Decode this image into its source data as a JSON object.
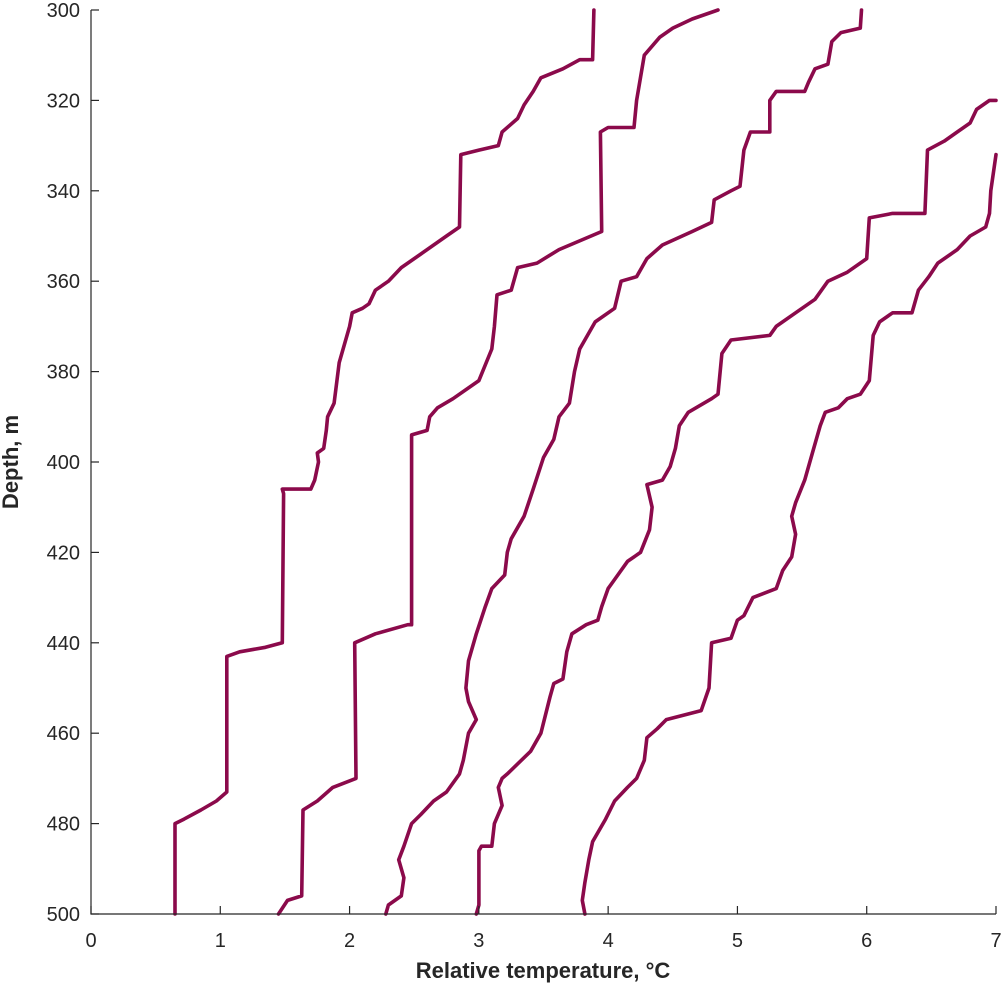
{
  "chart_data": {
    "type": "line",
    "title": "",
    "xlabel": "Relative temperature, °C",
    "ylabel": "Depth, m",
    "xlim": [
      0,
      7
    ],
    "ylim": [
      300,
      500
    ],
    "y_reversed": true,
    "grid": false,
    "legend": "none",
    "x_ticks": [
      "0",
      "1",
      "2",
      "3",
      "4",
      "5",
      "6",
      "7"
    ],
    "y_ticks": [
      "300",
      "320",
      "340",
      "360",
      "380",
      "400",
      "420",
      "440",
      "460",
      "480",
      "500"
    ],
    "line_color": "#8b0a4b",
    "series": [
      {
        "points": [
          [
            0.65,
            500
          ],
          [
            0.65,
            480
          ],
          [
            0.72,
            479
          ],
          [
            0.85,
            477
          ],
          [
            0.97,
            475
          ],
          [
            1.05,
            473
          ],
          [
            1.05,
            443
          ],
          [
            1.15,
            442
          ],
          [
            1.35,
            441
          ],
          [
            1.48,
            440
          ],
          [
            1.49,
            407
          ],
          [
            1.48,
            406
          ],
          [
            1.7,
            406
          ],
          [
            1.73,
            404
          ],
          [
            1.76,
            400
          ],
          [
            1.75,
            398
          ],
          [
            1.8,
            397
          ],
          [
            1.82,
            393
          ],
          [
            1.83,
            390
          ],
          [
            1.88,
            387
          ],
          [
            1.92,
            378
          ],
          [
            2.0,
            370
          ],
          [
            2.02,
            367
          ],
          [
            2.1,
            366
          ],
          [
            2.15,
            365
          ],
          [
            2.2,
            362
          ],
          [
            2.3,
            360
          ],
          [
            2.4,
            357
          ],
          [
            2.55,
            354
          ],
          [
            2.75,
            350
          ],
          [
            2.85,
            348
          ],
          [
            2.86,
            332
          ],
          [
            3.0,
            331
          ],
          [
            3.15,
            330
          ],
          [
            3.18,
            327
          ],
          [
            3.3,
            324
          ],
          [
            3.35,
            321
          ],
          [
            3.42,
            318
          ],
          [
            3.48,
            315
          ],
          [
            3.65,
            313
          ],
          [
            3.78,
            311
          ],
          [
            3.88,
            311
          ],
          [
            3.89,
            300
          ]
        ]
      },
      {
        "points": [
          [
            1.45,
            500
          ],
          [
            1.52,
            497
          ],
          [
            1.63,
            496
          ],
          [
            1.64,
            477
          ],
          [
            1.75,
            475
          ],
          [
            1.87,
            472
          ],
          [
            2.05,
            470
          ],
          [
            2.04,
            440
          ],
          [
            2.2,
            438
          ],
          [
            2.45,
            436
          ],
          [
            2.48,
            436
          ],
          [
            2.48,
            394
          ],
          [
            2.6,
            393
          ],
          [
            2.62,
            390
          ],
          [
            2.68,
            388
          ],
          [
            2.8,
            386
          ],
          [
            3.0,
            382
          ],
          [
            3.1,
            375
          ],
          [
            3.12,
            370
          ],
          [
            3.14,
            363
          ],
          [
            3.25,
            362
          ],
          [
            3.3,
            357
          ],
          [
            3.45,
            356
          ],
          [
            3.62,
            353
          ],
          [
            3.95,
            349
          ],
          [
            3.94,
            327
          ],
          [
            4.0,
            326
          ],
          [
            4.2,
            326
          ],
          [
            4.22,
            320
          ],
          [
            4.28,
            310
          ],
          [
            4.4,
            306
          ],
          [
            4.5,
            304
          ],
          [
            4.65,
            302
          ],
          [
            4.75,
            301
          ],
          [
            4.85,
            300
          ]
        ]
      },
      {
        "points": [
          [
            2.28,
            500
          ],
          [
            2.3,
            498
          ],
          [
            2.4,
            496
          ],
          [
            2.42,
            492
          ],
          [
            2.38,
            488
          ],
          [
            2.42,
            485
          ],
          [
            2.48,
            480
          ],
          [
            2.55,
            478
          ],
          [
            2.65,
            475
          ],
          [
            2.75,
            473
          ],
          [
            2.85,
            469
          ],
          [
            2.88,
            466
          ],
          [
            2.92,
            460
          ],
          [
            2.98,
            457
          ],
          [
            2.95,
            455
          ],
          [
            2.92,
            453
          ],
          [
            2.9,
            450
          ],
          [
            2.92,
            444
          ],
          [
            2.98,
            438
          ],
          [
            3.05,
            432
          ],
          [
            3.1,
            428
          ],
          [
            3.2,
            425
          ],
          [
            3.22,
            420
          ],
          [
            3.25,
            417
          ],
          [
            3.35,
            412
          ],
          [
            3.42,
            406
          ],
          [
            3.5,
            399
          ],
          [
            3.58,
            395
          ],
          [
            3.62,
            390
          ],
          [
            3.7,
            387
          ],
          [
            3.74,
            380
          ],
          [
            3.78,
            375
          ],
          [
            3.9,
            369
          ],
          [
            4.05,
            366
          ],
          [
            4.1,
            360
          ],
          [
            4.22,
            359
          ],
          [
            4.3,
            355
          ],
          [
            4.42,
            352
          ],
          [
            4.65,
            349
          ],
          [
            4.8,
            347
          ],
          [
            4.82,
            342
          ],
          [
            4.95,
            340
          ],
          [
            5.02,
            339
          ],
          [
            5.05,
            331
          ],
          [
            5.1,
            327
          ],
          [
            5.25,
            327
          ],
          [
            5.25,
            320
          ],
          [
            5.3,
            318
          ],
          [
            5.52,
            318
          ],
          [
            5.55,
            316
          ],
          [
            5.6,
            313
          ],
          [
            5.7,
            312
          ],
          [
            5.73,
            307
          ],
          [
            5.8,
            305
          ],
          [
            5.95,
            304
          ],
          [
            5.96,
            300
          ]
        ]
      },
      {
        "points": [
          [
            2.98,
            500
          ],
          [
            3.0,
            498
          ],
          [
            3.0,
            486
          ],
          [
            3.02,
            485
          ],
          [
            3.1,
            485
          ],
          [
            3.12,
            480
          ],
          [
            3.18,
            476
          ],
          [
            3.15,
            472
          ],
          [
            3.18,
            470
          ],
          [
            3.22,
            469
          ],
          [
            3.4,
            464
          ],
          [
            3.48,
            460
          ],
          [
            3.55,
            452
          ],
          [
            3.58,
            449
          ],
          [
            3.65,
            448
          ],
          [
            3.68,
            442
          ],
          [
            3.72,
            438
          ],
          [
            3.83,
            436
          ],
          [
            3.92,
            435
          ],
          [
            3.95,
            432
          ],
          [
            4.0,
            428
          ],
          [
            4.05,
            426
          ],
          [
            4.15,
            422
          ],
          [
            4.25,
            420
          ],
          [
            4.32,
            415
          ],
          [
            4.34,
            410
          ],
          [
            4.3,
            405
          ],
          [
            4.42,
            404
          ],
          [
            4.48,
            401
          ],
          [
            4.52,
            397
          ],
          [
            4.55,
            392
          ],
          [
            4.62,
            389
          ],
          [
            4.8,
            386
          ],
          [
            4.85,
            385
          ],
          [
            4.88,
            376
          ],
          [
            4.95,
            373
          ],
          [
            5.25,
            372
          ],
          [
            5.3,
            370
          ],
          [
            5.45,
            367
          ],
          [
            5.6,
            364
          ],
          [
            5.7,
            360
          ],
          [
            5.85,
            358
          ],
          [
            6.0,
            355
          ],
          [
            6.02,
            346
          ],
          [
            6.2,
            345
          ],
          [
            6.45,
            345
          ],
          [
            6.47,
            331
          ],
          [
            6.6,
            329
          ],
          [
            6.7,
            327
          ],
          [
            6.8,
            325
          ],
          [
            6.85,
            322
          ],
          [
            6.95,
            320
          ],
          [
            7.0,
            320
          ]
        ]
      },
      {
        "points": [
          [
            3.82,
            500
          ],
          [
            3.8,
            497
          ],
          [
            3.82,
            493
          ],
          [
            3.85,
            488
          ],
          [
            3.88,
            484
          ],
          [
            3.98,
            479
          ],
          [
            4.05,
            475
          ],
          [
            4.15,
            472
          ],
          [
            4.22,
            470
          ],
          [
            4.28,
            466
          ],
          [
            4.3,
            461
          ],
          [
            4.38,
            459
          ],
          [
            4.45,
            457
          ],
          [
            4.72,
            455
          ],
          [
            4.78,
            450
          ],
          [
            4.8,
            440
          ],
          [
            4.95,
            439
          ],
          [
            5.0,
            435
          ],
          [
            5.05,
            434
          ],
          [
            5.12,
            430
          ],
          [
            5.3,
            428
          ],
          [
            5.35,
            424
          ],
          [
            5.42,
            421
          ],
          [
            5.45,
            416
          ],
          [
            5.42,
            412
          ],
          [
            5.45,
            409
          ],
          [
            5.52,
            404
          ],
          [
            5.58,
            398
          ],
          [
            5.64,
            392
          ],
          [
            5.68,
            389
          ],
          [
            5.78,
            388
          ],
          [
            5.85,
            386
          ],
          [
            5.95,
            385
          ],
          [
            6.02,
            382
          ],
          [
            6.05,
            372
          ],
          [
            6.1,
            369
          ],
          [
            6.2,
            367
          ],
          [
            6.35,
            367
          ],
          [
            6.4,
            362
          ],
          [
            6.48,
            359
          ],
          [
            6.55,
            356
          ],
          [
            6.65,
            354
          ],
          [
            6.7,
            353
          ],
          [
            6.8,
            350
          ],
          [
            6.92,
            348
          ],
          [
            6.95,
            345
          ],
          [
            6.96,
            340
          ],
          [
            6.98,
            336
          ],
          [
            7.0,
            332
          ]
        ]
      }
    ]
  }
}
